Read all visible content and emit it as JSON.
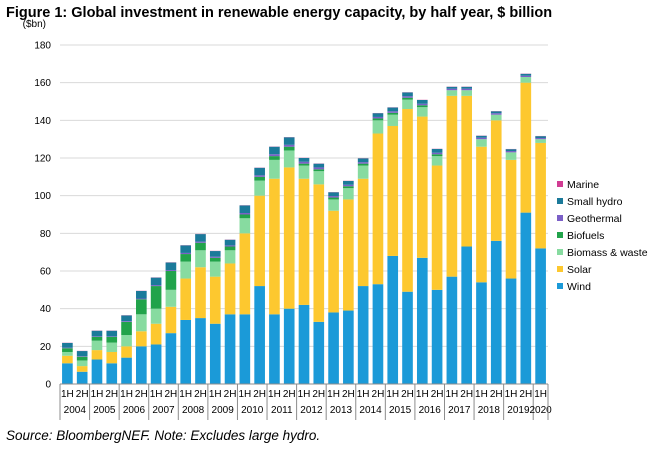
{
  "figure_title": "Figure 1: Global investment in renewable energy capacity, by half year, $ billion",
  "source_note": "Source: BloombergNEF. Note: Excludes large hydro.",
  "chart_data": {
    "type": "bar",
    "stacked": true,
    "title": "Figure 1: Global investment in renewable energy capacity, by half year, $ billion",
    "ylabel": "($bn)",
    "xlabel": "",
    "ylim": [
      0,
      180
    ],
    "yticks": [
      0,
      20,
      40,
      60,
      80,
      100,
      120,
      140,
      160,
      180
    ],
    "grid": true,
    "legend_position": "right",
    "categories": [
      "1H",
      "2H",
      "1H",
      "2H",
      "1H",
      "2H",
      "1H",
      "2H",
      "1H",
      "2H",
      "1H",
      "2H",
      "1H",
      "2H",
      "1H",
      "2H",
      "1H",
      "2H",
      "1H",
      "2H",
      "1H",
      "2H",
      "1H",
      "2H",
      "1H",
      "2H",
      "1H",
      "2H",
      "1H",
      "2H",
      "1H",
      "2H",
      "1H"
    ],
    "year_groups": [
      {
        "year": "2004",
        "span": 2
      },
      {
        "year": "2005",
        "span": 2
      },
      {
        "year": "2006",
        "span": 2
      },
      {
        "year": "2007",
        "span": 2
      },
      {
        "year": "2008",
        "span": 2
      },
      {
        "year": "2009",
        "span": 2
      },
      {
        "year": "2010",
        "span": 2
      },
      {
        "year": "2011",
        "span": 2
      },
      {
        "year": "2012",
        "span": 2
      },
      {
        "year": "2013",
        "span": 2
      },
      {
        "year": "2014",
        "span": 2
      },
      {
        "year": "2015",
        "span": 2
      },
      {
        "year": "2016",
        "span": 2
      },
      {
        "year": "2017",
        "span": 2
      },
      {
        "year": "2018",
        "span": 2
      },
      {
        "year": "2019",
        "span": 2
      },
      {
        "year": "2020",
        "span": 1
      }
    ],
    "series": [
      {
        "name": "Wind",
        "color": "#1b9ad8",
        "values": [
          11,
          6.5,
          13,
          11,
          14,
          20,
          21,
          27,
          34,
          35,
          32,
          37,
          37,
          52,
          37,
          40,
          42,
          33,
          38,
          39,
          52,
          53,
          68,
          49,
          67,
          50,
          57,
          73,
          54,
          76,
          56,
          91,
          72
        ]
      },
      {
        "name": "Solar",
        "color": "#fdc82f",
        "values": [
          4,
          3,
          5,
          6,
          6,
          8,
          11,
          14,
          22,
          27,
          25,
          27,
          43,
          48,
          72,
          75,
          67,
          73,
          54,
          59,
          57,
          80,
          69,
          97,
          75,
          66,
          96,
          80,
          72,
          64,
          63,
          69,
          56
        ]
      },
      {
        "name": "Biomass & waste",
        "color": "#87dba0",
        "values": [
          2,
          3,
          5,
          5,
          6,
          9,
          8,
          9,
          9,
          9,
          8,
          7,
          8,
          8,
          10,
          9,
          7,
          7,
          6,
          6,
          7,
          7,
          6,
          5,
          5,
          5,
          3,
          3,
          4,
          3,
          4,
          3,
          2
        ]
      },
      {
        "name": "Biofuels",
        "color": "#21a34a",
        "values": [
          2,
          2,
          2,
          3,
          7,
          8,
          12,
          10,
          4,
          4,
          2,
          2,
          2,
          2,
          2,
          2,
          1,
          1,
          1,
          1,
          1,
          1,
          1,
          1,
          1,
          1,
          0,
          0,
          0,
          0,
          0,
          0,
          0
        ]
      },
      {
        "name": "Geothermal",
        "color": "#7b5fc7",
        "values": [
          0.3,
          0.3,
          0.3,
          0.3,
          0.4,
          0.4,
          0.5,
          0.5,
          0.6,
          0.6,
          0.6,
          0.6,
          0.8,
          0.8,
          1,
          1,
          1,
          1,
          0.8,
          0.8,
          0.8,
          0.8,
          0.8,
          0.8,
          0.8,
          0.8,
          0.8,
          0.8,
          0.8,
          0.8,
          0.7,
          0.7,
          0.6
        ]
      },
      {
        "name": "Small hydro",
        "color": "#1b7a9a",
        "values": [
          2.5,
          2.7,
          3,
          3,
          3,
          4,
          4,
          4,
          4,
          4,
          3,
          3,
          4,
          4,
          4,
          4,
          2,
          2,
          2,
          2,
          2,
          2,
          2,
          2,
          2,
          2,
          1,
          1,
          1,
          1,
          1,
          1,
          1
        ]
      },
      {
        "name": "Marine",
        "color": "#d13c93",
        "values": [
          0.1,
          0.1,
          0.1,
          0.1,
          0.1,
          0.1,
          0.1,
          0.1,
          0.1,
          0.1,
          0.1,
          0.1,
          0.1,
          0.1,
          0.1,
          0.1,
          0.1,
          0.1,
          0.1,
          0.1,
          0.1,
          0.1,
          0.1,
          0.1,
          0.1,
          0.1,
          0.1,
          0.1,
          0.1,
          0.1,
          0.1,
          0.1,
          0.1
        ]
      }
    ]
  }
}
